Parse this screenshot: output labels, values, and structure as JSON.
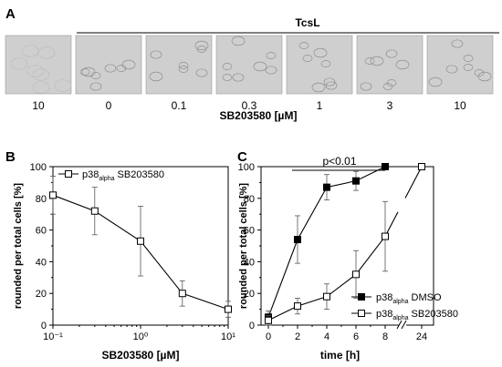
{
  "panel_a": {
    "letter": "A",
    "group_label": "TcsL",
    "concentrations": [
      "10",
      "0",
      "0.1",
      "0.3",
      "1",
      "3",
      "10"
    ],
    "axis_label": "SB203580 [µM]"
  },
  "chart_data": [
    {
      "panel": "B",
      "type": "line",
      "ylabel": "rounded per total cells [%]",
      "xlabel": "SB203580 [µM]",
      "xscale": "log",
      "xlim": [
        0.1,
        10
      ],
      "ylim": [
        0,
        100
      ],
      "x_ticks": [
        "10⁻¹",
        "10⁰",
        "10¹"
      ],
      "y_ticks": [
        "0",
        "20",
        "40",
        "60",
        "80",
        "100"
      ],
      "legend": {
        "placement": "top",
        "entries": [
          {
            "main": "p38",
            "sub": "alpha",
            "rest": " SB203580"
          }
        ]
      },
      "series": [
        {
          "marker": "open-square",
          "x": [
            0.1,
            0.3,
            1,
            3,
            10
          ],
          "y": [
            82,
            72,
            53,
            20,
            10
          ],
          "err": [
            12,
            15,
            22,
            8,
            5
          ]
        }
      ]
    },
    {
      "panel": "C",
      "type": "line",
      "ylabel": "rounded per total cells [%]",
      "xlabel": "time [h]",
      "xlim": [
        0,
        24
      ],
      "ylim": [
        0,
        100
      ],
      "x_ticks": [
        "0",
        "2",
        "4",
        "6",
        "8",
        "24"
      ],
      "y_ticks": [
        "0",
        "20",
        "40",
        "60",
        "80",
        "100"
      ],
      "annotation": "p<0.01",
      "axis_break": true,
      "legend": {
        "placement": "bottom-right",
        "entries": [
          {
            "main": "p38",
            "sub": "alpha",
            "rest": " DMSO"
          },
          {
            "main": "p38",
            "sub": "alpha",
            "rest": " SB203580"
          }
        ]
      },
      "series": [
        {
          "marker": "filled-square",
          "x": [
            0,
            2,
            4,
            6,
            8
          ],
          "y": [
            5,
            54,
            87,
            91,
            100
          ],
          "err": [
            4,
            15,
            8,
            6,
            0
          ]
        },
        {
          "marker": "open-square",
          "x": [
            0,
            2,
            4,
            6,
            8,
            24
          ],
          "y": [
            3,
            12,
            18,
            32,
            56,
            100
          ],
          "err": [
            3,
            5,
            8,
            15,
            22,
            0
          ]
        }
      ]
    }
  ]
}
